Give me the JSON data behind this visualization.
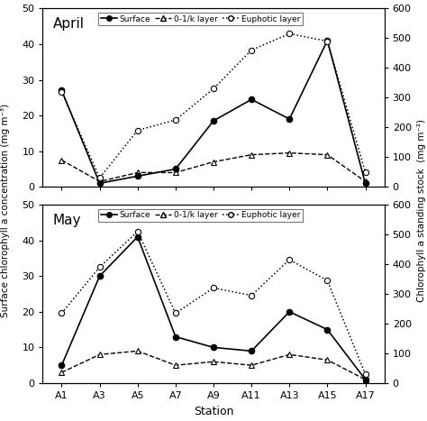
{
  "stations": [
    "A1",
    "A3",
    "A5",
    "A7",
    "A9",
    "A11",
    "A13",
    "A15",
    "A17"
  ],
  "april": {
    "surface": [
      27,
      1,
      3,
      5,
      18.5,
      24.5,
      19,
      41,
      1
    ],
    "layer01k": [
      7.5,
      1.5,
      4,
      4,
      7,
      9,
      9.5,
      9,
      1.5
    ],
    "euphotic": [
      320,
      30,
      190,
      225,
      330,
      460,
      515,
      490,
      50
    ]
  },
  "may": {
    "surface": [
      5,
      30,
      41,
      13,
      10,
      9,
      20,
      15,
      1
    ],
    "layer01k": [
      3,
      8,
      9,
      5,
      6,
      5,
      8,
      6.5,
      1
    ],
    "euphotic": [
      235,
      390,
      510,
      235,
      320,
      295,
      415,
      345,
      30
    ]
  },
  "left_ylim": [
    0,
    50
  ],
  "right_ylim": [
    0,
    600
  ],
  "left_yticks": [
    0,
    10,
    20,
    30,
    40,
    50
  ],
  "right_yticks": [
    0,
    100,
    200,
    300,
    400,
    500,
    600
  ],
  "title_april": "April",
  "title_may": "May",
  "xlabel": "Station",
  "ylabel_left": "Surface chlorophyll a concentration (mg m⁻³)",
  "ylabel_right": "Chlorophyll a standing stock  (mg m⁻²)",
  "bg_color": "white"
}
